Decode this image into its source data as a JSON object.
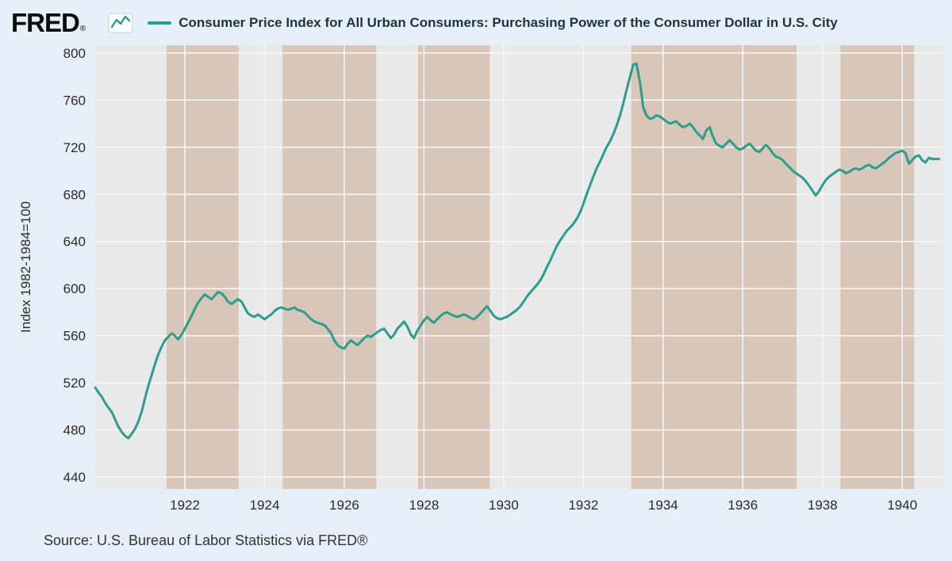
{
  "header": {
    "logo_text": "FRED",
    "logo_registered": "®"
  },
  "footer": {
    "source_text": "Source: U.S. Bureau of Labor Statistics via FRED®"
  },
  "chart_data": {
    "type": "line",
    "title": "Consumer Price Index for All Urban Consumers: Purchasing Power of the Consumer Dollar in U.S. City",
    "xlabel": "",
    "ylabel": "Index 1982-1984=100",
    "x_domain": [
      1919.75,
      1941.05
    ],
    "y_domain": [
      430,
      806.6
    ],
    "x_ticks": [
      1922,
      1924,
      1926,
      1928,
      1930,
      1932,
      1934,
      1936,
      1938,
      1940
    ],
    "y_ticks": [
      440,
      480,
      520,
      560,
      600,
      640,
      680,
      720,
      760,
      800
    ],
    "grid": true,
    "legend_position": "top",
    "recession_bands": [
      [
        1919.75,
        1921.54
      ],
      [
        1923.35,
        1924.45
      ],
      [
        1926.8,
        1927.85
      ],
      [
        1929.65,
        1933.2
      ],
      [
        1937.35,
        1938.45
      ],
      [
        1940.3,
        1941.05
      ]
    ],
    "colors": {
      "line": "#2a9d8f",
      "plot_bg": "#d8c7b9",
      "band": "#e9e9e9",
      "grid": "#f7f7f7",
      "text": "#2b2b2b",
      "title": "#1d3245"
    },
    "series": [
      {
        "name": "Consumer Price Index for All Urban Consumers: Purchasing Power of the Consumer Dollar in U.S. City",
        "points": [
          [
            1919.75,
            516
          ],
          [
            1919.83,
            512
          ],
          [
            1919.92,
            508
          ],
          [
            1920.0,
            503
          ],
          [
            1920.08,
            499
          ],
          [
            1920.17,
            495
          ],
          [
            1920.25,
            489
          ],
          [
            1920.33,
            483
          ],
          [
            1920.42,
            478
          ],
          [
            1920.5,
            475
          ],
          [
            1920.58,
            473
          ],
          [
            1920.67,
            477
          ],
          [
            1920.75,
            481
          ],
          [
            1920.83,
            487
          ],
          [
            1920.92,
            496
          ],
          [
            1921.0,
            507
          ],
          [
            1921.08,
            517
          ],
          [
            1921.17,
            527
          ],
          [
            1921.25,
            536
          ],
          [
            1921.33,
            544
          ],
          [
            1921.42,
            551
          ],
          [
            1921.5,
            556
          ],
          [
            1921.58,
            559
          ],
          [
            1921.67,
            562
          ],
          [
            1921.75,
            560
          ],
          [
            1921.83,
            557
          ],
          [
            1921.92,
            561
          ],
          [
            1922.0,
            566
          ],
          [
            1922.08,
            571
          ],
          [
            1922.17,
            577
          ],
          [
            1922.25,
            583
          ],
          [
            1922.33,
            588
          ],
          [
            1922.42,
            592
          ],
          [
            1922.5,
            595
          ],
          [
            1922.58,
            593
          ],
          [
            1922.67,
            591
          ],
          [
            1922.75,
            594
          ],
          [
            1922.83,
            597
          ],
          [
            1922.92,
            596
          ],
          [
            1923.0,
            593
          ],
          [
            1923.08,
            589
          ],
          [
            1923.17,
            587
          ],
          [
            1923.25,
            589
          ],
          [
            1923.33,
            591
          ],
          [
            1923.42,
            589
          ],
          [
            1923.5,
            584
          ],
          [
            1923.58,
            579
          ],
          [
            1923.67,
            577
          ],
          [
            1923.75,
            576
          ],
          [
            1923.83,
            578
          ],
          [
            1923.92,
            576
          ],
          [
            1924.0,
            574
          ],
          [
            1924.08,
            576
          ],
          [
            1924.17,
            578
          ],
          [
            1924.25,
            581
          ],
          [
            1924.33,
            583
          ],
          [
            1924.42,
            584
          ],
          [
            1924.5,
            583
          ],
          [
            1924.58,
            582
          ],
          [
            1924.67,
            583
          ],
          [
            1924.75,
            584
          ],
          [
            1924.83,
            582
          ],
          [
            1924.92,
            581
          ],
          [
            1925.0,
            580
          ],
          [
            1925.08,
            577
          ],
          [
            1925.17,
            574
          ],
          [
            1925.25,
            572
          ],
          [
            1925.33,
            571
          ],
          [
            1925.42,
            570
          ],
          [
            1925.5,
            569
          ],
          [
            1925.58,
            566
          ],
          [
            1925.67,
            562
          ],
          [
            1925.75,
            556
          ],
          [
            1925.83,
            552
          ],
          [
            1925.92,
            550
          ],
          [
            1926.0,
            549
          ],
          [
            1926.08,
            553
          ],
          [
            1926.17,
            556
          ],
          [
            1926.25,
            554
          ],
          [
            1926.33,
            552
          ],
          [
            1926.42,
            555
          ],
          [
            1926.5,
            558
          ],
          [
            1926.58,
            560
          ],
          [
            1926.67,
            559
          ],
          [
            1926.75,
            561
          ],
          [
            1926.83,
            563
          ],
          [
            1926.92,
            565
          ],
          [
            1927.0,
            566
          ],
          [
            1927.08,
            562
          ],
          [
            1927.17,
            558
          ],
          [
            1927.25,
            561
          ],
          [
            1927.33,
            566
          ],
          [
            1927.42,
            569
          ],
          [
            1927.5,
            572
          ],
          [
            1927.58,
            568
          ],
          [
            1927.67,
            561
          ],
          [
            1927.75,
            558
          ],
          [
            1927.83,
            564
          ],
          [
            1927.92,
            569
          ],
          [
            1928.0,
            573
          ],
          [
            1928.08,
            576
          ],
          [
            1928.17,
            573
          ],
          [
            1928.25,
            571
          ],
          [
            1928.33,
            574
          ],
          [
            1928.42,
            577
          ],
          [
            1928.5,
            579
          ],
          [
            1928.58,
            580
          ],
          [
            1928.67,
            578
          ],
          [
            1928.75,
            577
          ],
          [
            1928.83,
            576
          ],
          [
            1928.92,
            577
          ],
          [
            1929.0,
            578
          ],
          [
            1929.08,
            577
          ],
          [
            1929.17,
            575
          ],
          [
            1929.25,
            574
          ],
          [
            1929.33,
            576
          ],
          [
            1929.42,
            579
          ],
          [
            1929.5,
            582
          ],
          [
            1929.58,
            585
          ],
          [
            1929.67,
            581
          ],
          [
            1929.75,
            577
          ],
          [
            1929.83,
            575
          ],
          [
            1929.92,
            574
          ],
          [
            1930.0,
            575
          ],
          [
            1930.08,
            576
          ],
          [
            1930.17,
            578
          ],
          [
            1930.25,
            580
          ],
          [
            1930.33,
            582
          ],
          [
            1930.42,
            585
          ],
          [
            1930.5,
            589
          ],
          [
            1930.58,
            593
          ],
          [
            1930.67,
            597
          ],
          [
            1930.75,
            600
          ],
          [
            1930.83,
            603
          ],
          [
            1930.92,
            607
          ],
          [
            1931.0,
            612
          ],
          [
            1931.08,
            618
          ],
          [
            1931.17,
            624
          ],
          [
            1931.25,
            630
          ],
          [
            1931.33,
            636
          ],
          [
            1931.42,
            641
          ],
          [
            1931.5,
            645
          ],
          [
            1931.58,
            649
          ],
          [
            1931.67,
            652
          ],
          [
            1931.75,
            655
          ],
          [
            1931.83,
            659
          ],
          [
            1931.92,
            665
          ],
          [
            1932.0,
            672
          ],
          [
            1932.08,
            680
          ],
          [
            1932.17,
            688
          ],
          [
            1932.25,
            695
          ],
          [
            1932.33,
            702
          ],
          [
            1932.42,
            708
          ],
          [
            1932.5,
            714
          ],
          [
            1932.58,
            720
          ],
          [
            1932.67,
            725
          ],
          [
            1932.75,
            731
          ],
          [
            1932.83,
            738
          ],
          [
            1932.92,
            747
          ],
          [
            1933.0,
            757
          ],
          [
            1933.08,
            768
          ],
          [
            1933.17,
            780
          ],
          [
            1933.25,
            790
          ],
          [
            1933.33,
            791
          ],
          [
            1933.42,
            775
          ],
          [
            1933.5,
            754
          ],
          [
            1933.58,
            747
          ],
          [
            1933.67,
            744
          ],
          [
            1933.75,
            745
          ],
          [
            1933.83,
            747
          ],
          [
            1933.92,
            746
          ],
          [
            1934.0,
            744
          ],
          [
            1934.08,
            742
          ],
          [
            1934.17,
            740
          ],
          [
            1934.25,
            741
          ],
          [
            1934.33,
            742
          ],
          [
            1934.42,
            739
          ],
          [
            1934.5,
            737
          ],
          [
            1934.58,
            738
          ],
          [
            1934.67,
            740
          ],
          [
            1934.75,
            737
          ],
          [
            1934.83,
            733
          ],
          [
            1934.92,
            730
          ],
          [
            1935.0,
            727
          ],
          [
            1935.08,
            734
          ],
          [
            1935.17,
            737
          ],
          [
            1935.25,
            729
          ],
          [
            1935.33,
            723
          ],
          [
            1935.42,
            721
          ],
          [
            1935.5,
            720
          ],
          [
            1935.58,
            723
          ],
          [
            1935.67,
            726
          ],
          [
            1935.75,
            723
          ],
          [
            1935.83,
            720
          ],
          [
            1935.92,
            718
          ],
          [
            1936.0,
            719
          ],
          [
            1936.08,
            721
          ],
          [
            1936.17,
            723
          ],
          [
            1936.25,
            720
          ],
          [
            1936.33,
            717
          ],
          [
            1936.42,
            716
          ],
          [
            1936.5,
            719
          ],
          [
            1936.58,
            722
          ],
          [
            1936.67,
            719
          ],
          [
            1936.75,
            715
          ],
          [
            1936.83,
            712
          ],
          [
            1936.92,
            711
          ],
          [
            1937.0,
            709
          ],
          [
            1937.08,
            706
          ],
          [
            1937.17,
            703
          ],
          [
            1937.25,
            700
          ],
          [
            1937.33,
            698
          ],
          [
            1937.42,
            696
          ],
          [
            1937.5,
            694
          ],
          [
            1937.58,
            691
          ],
          [
            1937.67,
            687
          ],
          [
            1937.75,
            683
          ],
          [
            1937.83,
            679
          ],
          [
            1937.92,
            683
          ],
          [
            1938.0,
            688
          ],
          [
            1938.08,
            692
          ],
          [
            1938.17,
            695
          ],
          [
            1938.25,
            697
          ],
          [
            1938.33,
            699
          ],
          [
            1938.42,
            701
          ],
          [
            1938.5,
            700
          ],
          [
            1938.58,
            698
          ],
          [
            1938.67,
            699
          ],
          [
            1938.75,
            701
          ],
          [
            1938.83,
            702
          ],
          [
            1938.92,
            701
          ],
          [
            1939.0,
            702
          ],
          [
            1939.08,
            704
          ],
          [
            1939.17,
            705
          ],
          [
            1939.25,
            703
          ],
          [
            1939.33,
            702
          ],
          [
            1939.42,
            704
          ],
          [
            1939.5,
            706
          ],
          [
            1939.58,
            708
          ],
          [
            1939.67,
            711
          ],
          [
            1939.75,
            713
          ],
          [
            1939.83,
            715
          ],
          [
            1939.92,
            716
          ],
          [
            1940.0,
            717
          ],
          [
            1940.08,
            715
          ],
          [
            1940.17,
            706
          ],
          [
            1940.25,
            709
          ],
          [
            1940.33,
            712
          ],
          [
            1940.42,
            713
          ],
          [
            1940.5,
            709
          ],
          [
            1940.58,
            707
          ],
          [
            1940.67,
            711
          ],
          [
            1940.75,
            710
          ],
          [
            1940.83,
            710
          ],
          [
            1940.92,
            710
          ]
        ]
      }
    ]
  }
}
